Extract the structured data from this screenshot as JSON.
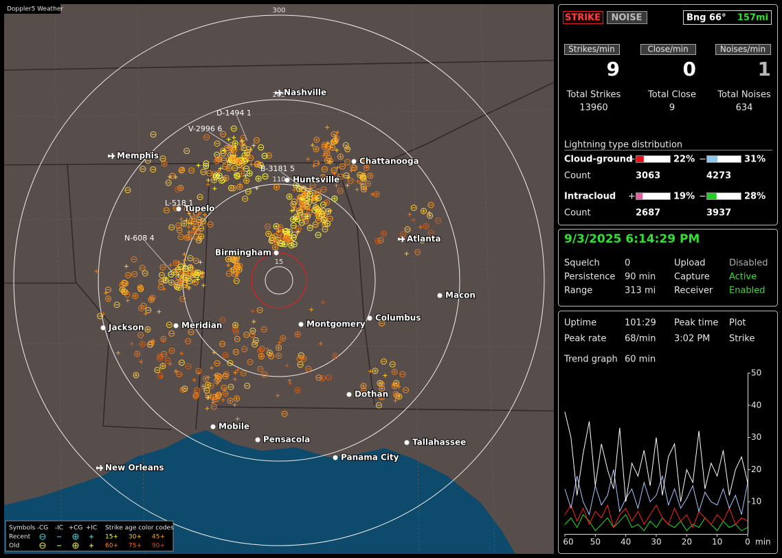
{
  "map": {
    "title": "Doppler5 Weather",
    "ring_labels": [
      300,
      205,
      110,
      15
    ],
    "cities": [
      "Nashville",
      "Memphis",
      "Chattanooga",
      "Huntsville",
      "Tupelo",
      "Atlanta",
      "Birmingham",
      "Macon",
      "Jackson",
      "Meridian",
      "Montgomery",
      "Columbus",
      "Dothan",
      "Mobile",
      "Pensacola",
      "Tallahassee",
      "Panama City",
      "New Orleans"
    ],
    "storms": [
      "D-1494 1",
      "V-2996 6",
      "B-3181 5",
      "L-518 1",
      "N-608 4"
    ],
    "legend": {
      "symbols_label": "Symbols",
      "symbol_headers": [
        "-CG",
        "-IC",
        "+CG",
        "+IC"
      ],
      "age_label": "Strike age color codes",
      "rows": [
        {
          "label": "Recent",
          "ages": [
            "15+",
            "30+",
            "45+"
          ],
          "age_colors": [
            "#ffff40",
            "#ffc830",
            "#ff9a20"
          ]
        },
        {
          "label": "Old",
          "ages": [
            "60+",
            "75+",
            "90+"
          ],
          "age_colors": [
            "#ff8a1a",
            "#f06a10",
            "#e04a10"
          ]
        }
      ]
    }
  },
  "panel": {
    "mode_buttons": [
      "STRIKE",
      "NOISE"
    ],
    "bearing": "Bng 66°",
    "distance": "157mi",
    "rates": [
      {
        "label": "Strikes/min",
        "value": 9,
        "color": "#ffffff"
      },
      {
        "label": "Close/min",
        "value": 0,
        "color": "#ffffff"
      },
      {
        "label": "Noises/min",
        "value": 1,
        "color": "#b8b8b8"
      }
    ],
    "totals": [
      {
        "label": "Total Strikes",
        "value": 13960
      },
      {
        "label": "Total Close",
        "value": 9
      },
      {
        "label": "Total Noises",
        "value": 634
      }
    ],
    "distribution": {
      "title": "Lightning type distribution",
      "count_label": "Count",
      "rows": [
        {
          "label": "Cloud-ground",
          "pos": {
            "sign": "+",
            "pct": 22,
            "pct_label": "22%",
            "count": 3063,
            "color": "#e8101c"
          },
          "neg": {
            "sign": "−",
            "pct": 31,
            "pct_label": "31%",
            "count": 4273,
            "color": "#90c8f0"
          }
        },
        {
          "label": "Intracloud",
          "pos": {
            "sign": "+",
            "pct": 19,
            "pct_label": "19%",
            "count": 2687,
            "color": "#e060a0"
          },
          "neg": {
            "sign": "−",
            "pct": 28,
            "pct_label": "28%",
            "count": 3937,
            "color": "#20d020"
          }
        }
      ]
    },
    "clock": "9/3/2025 6:14:29 PM",
    "status": [
      {
        "label": "Squelch",
        "value": "0",
        "color": "#e0e0e0"
      },
      {
        "label": "Persistence",
        "value": "90 min",
        "color": "#e0e0e0"
      },
      {
        "label": "Range",
        "value": "313 mi",
        "color": "#e0e0e0"
      },
      {
        "label": "Upload",
        "value": "Disabled",
        "color": "#b0b0b0"
      },
      {
        "label": "Capture",
        "value": "Active",
        "color": "#30e030"
      },
      {
        "label": "Receiver",
        "value": "Enabled",
        "color": "#30e030"
      }
    ],
    "stats": [
      {
        "label": "Uptime",
        "value": "101:29"
      },
      {
        "label": "Peak rate",
        "value": "68/min"
      },
      {
        "label": "Peak time",
        "value": "3:02 PM"
      },
      {
        "label": "Plot",
        "value": "Strike"
      },
      {
        "label": "Trend graph",
        "value": "60 min"
      }
    ]
  },
  "chart_data": {
    "type": "line",
    "xlim": [
      60,
      0
    ],
    "xticks": [
      60,
      50,
      40,
      30,
      20,
      10,
      0
    ],
    "x_label": "min",
    "ylim": [
      0,
      50
    ],
    "yticks": [
      10,
      20,
      30,
      40,
      50
    ],
    "x": [
      60,
      58,
      56,
      54,
      52,
      50,
      48,
      46,
      44,
      42,
      40,
      38,
      36,
      34,
      32,
      30,
      28,
      26,
      24,
      22,
      20,
      18,
      16,
      14,
      12,
      10,
      8,
      6,
      4,
      2,
      0
    ],
    "series": [
      {
        "color": "#ffffff",
        "values": [
          38,
          30,
          12,
          25,
          35,
          15,
          28,
          20,
          14,
          33,
          10,
          22,
          18,
          26,
          15,
          30,
          12,
          24,
          28,
          10,
          20,
          16,
          32,
          14,
          22,
          18,
          26,
          12,
          20,
          24,
          16
        ]
      },
      {
        "color": "#a8c8ff",
        "values": [
          14,
          8,
          18,
          10,
          6,
          15,
          9,
          12,
          20,
          7,
          11,
          14,
          8,
          16,
          10,
          12,
          18,
          9,
          14,
          8,
          11,
          15,
          7,
          13,
          10,
          9,
          14,
          8,
          12,
          6,
          16
        ]
      },
      {
        "color": "#ff2020",
        "values": [
          6,
          9,
          4,
          8,
          3,
          7,
          5,
          9,
          2,
          6,
          8,
          4,
          7,
          3,
          6,
          9,
          5,
          3,
          8,
          4,
          6,
          2,
          7,
          5,
          3,
          6,
          4,
          8,
          3,
          5,
          4
        ]
      },
      {
        "color": "#20e020",
        "values": [
          3,
          5,
          2,
          6,
          4,
          1,
          3,
          5,
          2,
          4,
          6,
          2,
          3,
          1,
          4,
          2,
          5,
          3,
          2,
          4,
          1,
          3,
          2,
          5,
          3,
          1,
          4,
          2,
          3,
          1,
          2
        ]
      }
    ]
  }
}
